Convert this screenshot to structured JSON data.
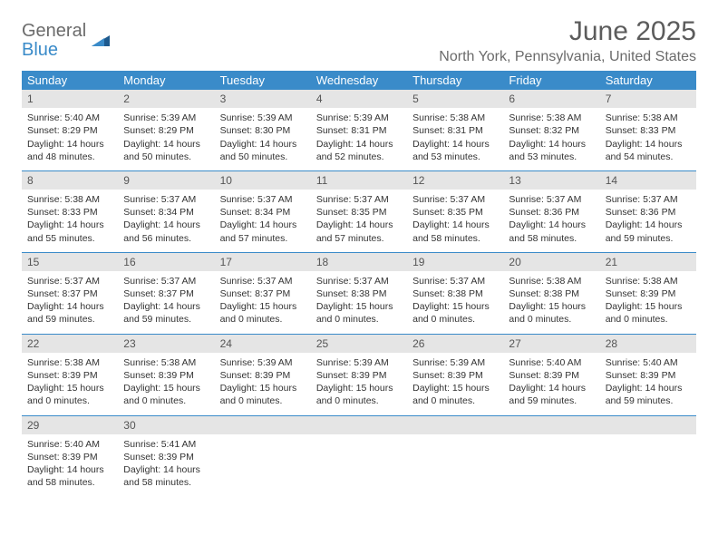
{
  "logo": {
    "general": "General",
    "blue": "Blue"
  },
  "title": "June 2025",
  "location": "North York, Pennsylvania, United States",
  "colors": {
    "accent": "#3a8bc9",
    "daynum_bg": "#e5e5e5",
    "text": "#333333",
    "header_text": "#5c5c5c"
  },
  "daysOfWeek": [
    "Sunday",
    "Monday",
    "Tuesday",
    "Wednesday",
    "Thursday",
    "Friday",
    "Saturday"
  ],
  "weeks": [
    [
      {
        "n": "1",
        "sr": "5:40 AM",
        "ss": "8:29 PM",
        "dl": "14 hours and 48 minutes."
      },
      {
        "n": "2",
        "sr": "5:39 AM",
        "ss": "8:29 PM",
        "dl": "14 hours and 50 minutes."
      },
      {
        "n": "3",
        "sr": "5:39 AM",
        "ss": "8:30 PM",
        "dl": "14 hours and 50 minutes."
      },
      {
        "n": "4",
        "sr": "5:39 AM",
        "ss": "8:31 PM",
        "dl": "14 hours and 52 minutes."
      },
      {
        "n": "5",
        "sr": "5:38 AM",
        "ss": "8:31 PM",
        "dl": "14 hours and 53 minutes."
      },
      {
        "n": "6",
        "sr": "5:38 AM",
        "ss": "8:32 PM",
        "dl": "14 hours and 53 minutes."
      },
      {
        "n": "7",
        "sr": "5:38 AM",
        "ss": "8:33 PM",
        "dl": "14 hours and 54 minutes."
      }
    ],
    [
      {
        "n": "8",
        "sr": "5:38 AM",
        "ss": "8:33 PM",
        "dl": "14 hours and 55 minutes."
      },
      {
        "n": "9",
        "sr": "5:37 AM",
        "ss": "8:34 PM",
        "dl": "14 hours and 56 minutes."
      },
      {
        "n": "10",
        "sr": "5:37 AM",
        "ss": "8:34 PM",
        "dl": "14 hours and 57 minutes."
      },
      {
        "n": "11",
        "sr": "5:37 AM",
        "ss": "8:35 PM",
        "dl": "14 hours and 57 minutes."
      },
      {
        "n": "12",
        "sr": "5:37 AM",
        "ss": "8:35 PM",
        "dl": "14 hours and 58 minutes."
      },
      {
        "n": "13",
        "sr": "5:37 AM",
        "ss": "8:36 PM",
        "dl": "14 hours and 58 minutes."
      },
      {
        "n": "14",
        "sr": "5:37 AM",
        "ss": "8:36 PM",
        "dl": "14 hours and 59 minutes."
      }
    ],
    [
      {
        "n": "15",
        "sr": "5:37 AM",
        "ss": "8:37 PM",
        "dl": "14 hours and 59 minutes."
      },
      {
        "n": "16",
        "sr": "5:37 AM",
        "ss": "8:37 PM",
        "dl": "14 hours and 59 minutes."
      },
      {
        "n": "17",
        "sr": "5:37 AM",
        "ss": "8:37 PM",
        "dl": "15 hours and 0 minutes."
      },
      {
        "n": "18",
        "sr": "5:37 AM",
        "ss": "8:38 PM",
        "dl": "15 hours and 0 minutes."
      },
      {
        "n": "19",
        "sr": "5:37 AM",
        "ss": "8:38 PM",
        "dl": "15 hours and 0 minutes."
      },
      {
        "n": "20",
        "sr": "5:38 AM",
        "ss": "8:38 PM",
        "dl": "15 hours and 0 minutes."
      },
      {
        "n": "21",
        "sr": "5:38 AM",
        "ss": "8:39 PM",
        "dl": "15 hours and 0 minutes."
      }
    ],
    [
      {
        "n": "22",
        "sr": "5:38 AM",
        "ss": "8:39 PM",
        "dl": "15 hours and 0 minutes."
      },
      {
        "n": "23",
        "sr": "5:38 AM",
        "ss": "8:39 PM",
        "dl": "15 hours and 0 minutes."
      },
      {
        "n": "24",
        "sr": "5:39 AM",
        "ss": "8:39 PM",
        "dl": "15 hours and 0 minutes."
      },
      {
        "n": "25",
        "sr": "5:39 AM",
        "ss": "8:39 PM",
        "dl": "15 hours and 0 minutes."
      },
      {
        "n": "26",
        "sr": "5:39 AM",
        "ss": "8:39 PM",
        "dl": "15 hours and 0 minutes."
      },
      {
        "n": "27",
        "sr": "5:40 AM",
        "ss": "8:39 PM",
        "dl": "14 hours and 59 minutes."
      },
      {
        "n": "28",
        "sr": "5:40 AM",
        "ss": "8:39 PM",
        "dl": "14 hours and 59 minutes."
      }
    ],
    [
      {
        "n": "29",
        "sr": "5:40 AM",
        "ss": "8:39 PM",
        "dl": "14 hours and 58 minutes."
      },
      {
        "n": "30",
        "sr": "5:41 AM",
        "ss": "8:39 PM",
        "dl": "14 hours and 58 minutes."
      },
      null,
      null,
      null,
      null,
      null
    ]
  ],
  "labels": {
    "sunrise": "Sunrise: ",
    "sunset": "Sunset: ",
    "daylight": "Daylight: "
  }
}
